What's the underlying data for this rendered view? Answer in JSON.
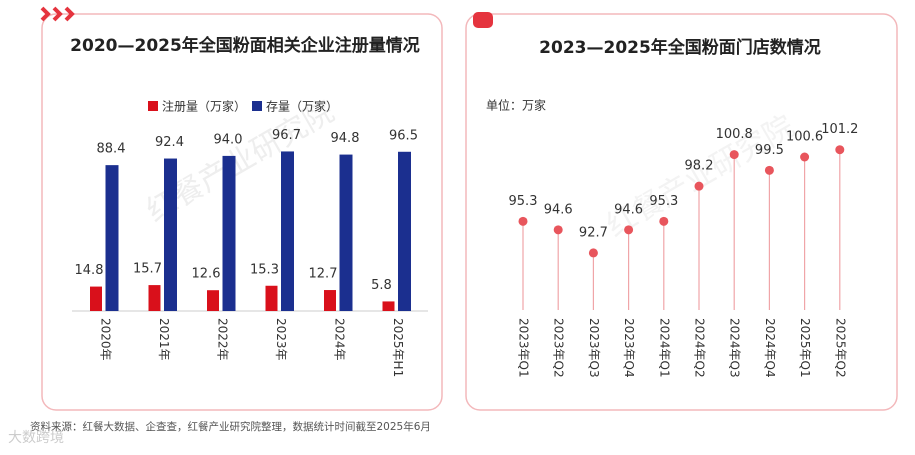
{
  "chart_data": [
    {
      "type": "bar",
      "title": "2020—2025年全国粉面相关企业注册量情况",
      "categories": [
        "2020年",
        "2021年",
        "2022年",
        "2023年",
        "2024年",
        "2025年H1"
      ],
      "series": [
        {
          "name": "注册量（万家）",
          "color": "#d9101b",
          "values": [
            14.8,
            15.7,
            12.6,
            15.3,
            12.7,
            5.8
          ]
        },
        {
          "name": "存量（万家）",
          "color": "#1b2f8f",
          "values": [
            88.4,
            92.4,
            94.0,
            96.7,
            94.8,
            96.5
          ],
          "value_labels": [
            "88.4",
            "92.4",
            "94.0",
            "96.7",
            "94.8",
            "96.5"
          ]
        }
      ],
      "ylim": [
        0,
        100
      ]
    },
    {
      "type": "lollipop",
      "title": "2023—2025年全国粉面门店数情况",
      "unit": "单位：万家",
      "categories": [
        "2023年Q1",
        "2023年Q2",
        "2023年Q3",
        "2023年Q4",
        "2024年Q1",
        "2024年Q2",
        "2024年Q3",
        "2024年Q4",
        "2025年Q1",
        "2025年Q2"
      ],
      "values": [
        95.3,
        94.6,
        92.7,
        94.6,
        95.3,
        98.2,
        100.8,
        99.5,
        100.6,
        101.2
      ],
      "color": "#e8555c",
      "ylim": [
        88,
        102
      ]
    }
  ],
  "source": "资料来源：红餐大数据、企查查，红餐产业研究院整理，数据统计时间截至2025年6月",
  "watermark": "红餐产业研究院",
  "logo": "大数跨境"
}
